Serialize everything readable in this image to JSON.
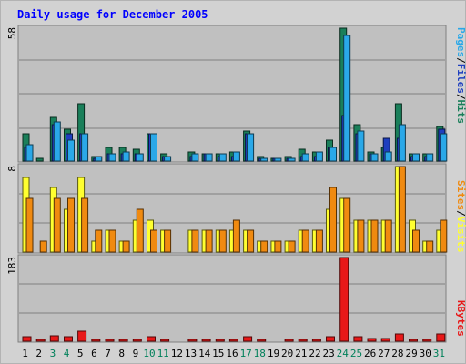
{
  "chart_data": [
    {
      "type": "bar",
      "title": "Daily usage for December 2005",
      "y_max_label": "58",
      "categories": [
        "1",
        "2",
        "3",
        "4",
        "5",
        "6",
        "7",
        "8",
        "9",
        "10",
        "11",
        "12",
        "13",
        "14",
        "15",
        "16",
        "17",
        "18",
        "19",
        "20",
        "21",
        "22",
        "23",
        "24",
        "25",
        "26",
        "27",
        "28",
        "29",
        "30",
        "31"
      ],
      "weekend_days": [
        "3",
        "4",
        "10",
        "11",
        "17",
        "18",
        "24",
        "25",
        "31"
      ],
      "ylabel_parts": [
        "Pages",
        "/",
        "Files",
        "/",
        "Hits"
      ],
      "ylim": [
        0,
        58
      ],
      "series": [
        {
          "name": "Hits",
          "color": "#1a7f5a",
          "values": [
            12,
            1,
            19,
            14,
            25,
            2,
            6,
            6,
            5,
            12,
            3,
            0,
            4,
            3,
            3,
            4,
            13,
            2,
            1,
            2,
            5,
            4,
            9,
            58,
            16,
            4,
            6,
            25,
            3,
            3,
            15
          ]
        },
        {
          "name": "Files",
          "color": "#1f3fbf",
          "values": [
            6,
            0,
            16,
            12,
            12,
            1,
            3,
            3,
            3,
            12,
            2,
            0,
            2,
            3,
            2,
            2,
            12,
            1,
            1,
            1,
            2,
            2,
            6,
            20,
            12,
            3,
            10,
            10,
            2,
            2,
            14
          ]
        },
        {
          "name": "Pages",
          "color": "#2aa8e8",
          "values": [
            7,
            0,
            17,
            9,
            12,
            2,
            3,
            4,
            3,
            12,
            2,
            0,
            3,
            3,
            3,
            4,
            12,
            1,
            1,
            1,
            3,
            4,
            6,
            55,
            13,
            3,
            4,
            16,
            3,
            3,
            12
          ]
        }
      ]
    },
    {
      "type": "bar",
      "y_max_label": "8",
      "categories": [
        "1",
        "2",
        "3",
        "4",
        "5",
        "6",
        "7",
        "8",
        "9",
        "10",
        "11",
        "12",
        "13",
        "14",
        "15",
        "16",
        "17",
        "18",
        "19",
        "20",
        "21",
        "22",
        "23",
        "24",
        "25",
        "26",
        "27",
        "28",
        "29",
        "30",
        "31"
      ],
      "ylabel_parts": [
        "Sites",
        "/",
        "Visits"
      ],
      "ylim": [
        0,
        8
      ],
      "series": [
        {
          "name": "Visits",
          "color": "#ffff30",
          "values": [
            7,
            0,
            6,
            4,
            7,
            1,
            2,
            1,
            3,
            3,
            2,
            0,
            2,
            2,
            2,
            2,
            2,
            1,
            1,
            1,
            2,
            2,
            4,
            5,
            3,
            3,
            3,
            8,
            3,
            1,
            2
          ]
        },
        {
          "name": "Sites",
          "color": "#f08a10",
          "values": [
            5,
            1,
            5,
            5,
            5,
            2,
            2,
            1,
            4,
            2,
            2,
            0,
            2,
            2,
            2,
            3,
            2,
            1,
            1,
            1,
            2,
            2,
            6,
            5,
            3,
            3,
            3,
            8,
            2,
            1,
            3
          ]
        }
      ]
    },
    {
      "type": "bar",
      "y_max_label": "183",
      "categories": [
        "1",
        "2",
        "3",
        "4",
        "5",
        "6",
        "7",
        "8",
        "9",
        "10",
        "11",
        "12",
        "13",
        "14",
        "15",
        "16",
        "17",
        "18",
        "19",
        "20",
        "21",
        "22",
        "23",
        "24",
        "25",
        "26",
        "27",
        "28",
        "29",
        "30",
        "31"
      ],
      "ylabel_parts": [
        "KBytes"
      ],
      "ylim": [
        0,
        183
      ],
      "series": [
        {
          "name": "KBytes",
          "color": "#e81818",
          "values": [
            9,
            2,
            12,
            9,
            21,
            2,
            3,
            4,
            3,
            9,
            3,
            0,
            2,
            2,
            2,
            2,
            10,
            1,
            0,
            2,
            2,
            2,
            10,
            183,
            9,
            6,
            5,
            15,
            2,
            2,
            15
          ]
        }
      ]
    }
  ],
  "colors": {
    "frame_bg": "#d2d2d2",
    "plot_bg": "#c0c0c0",
    "title": "#0000ff",
    "weekday_label": "#000000",
    "weekend_label": "#00805a",
    "slash": "#000000",
    "kbytes_label": "#e81818",
    "gridline": "#808080"
  }
}
